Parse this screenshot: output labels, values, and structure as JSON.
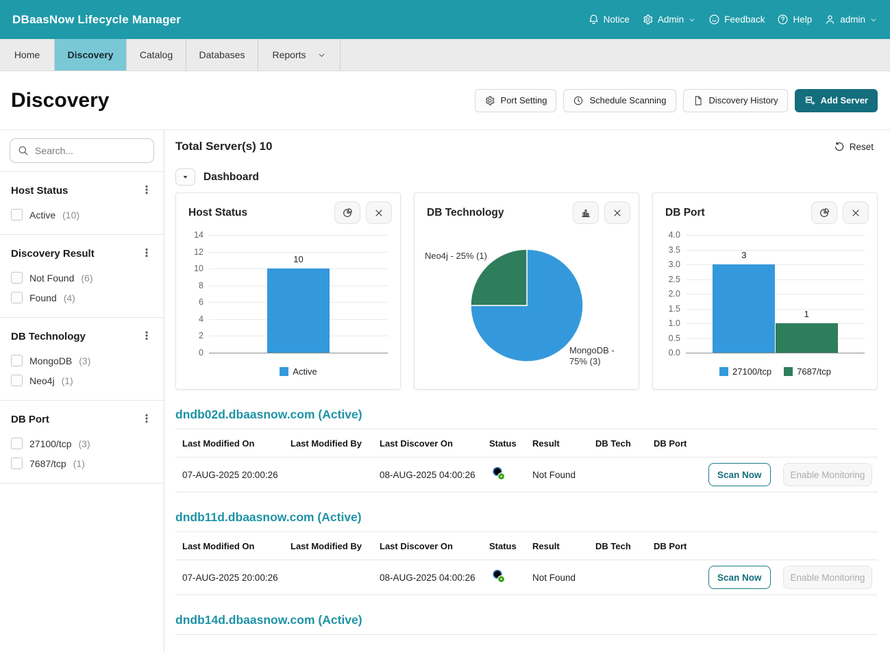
{
  "app": {
    "title": "DBaasNow Lifecycle Manager"
  },
  "top_nav": [
    {
      "id": "notice",
      "label": "Notice",
      "icon": "bell",
      "chevron": false
    },
    {
      "id": "admin-menu",
      "label": "Admin",
      "icon": "gear",
      "chevron": true
    },
    {
      "id": "feedback",
      "label": "Feedback",
      "icon": "smiley",
      "chevron": false
    },
    {
      "id": "help",
      "label": "Help",
      "icon": "help",
      "chevron": false
    },
    {
      "id": "user-menu",
      "label": "admin",
      "icon": "person",
      "chevron": true
    }
  ],
  "tabs": [
    {
      "id": "home",
      "label": "Home",
      "active": false,
      "chevron": false
    },
    {
      "id": "discovery",
      "label": "Discovery",
      "active": true,
      "chevron": false
    },
    {
      "id": "catalog",
      "label": "Catalog",
      "active": false,
      "chevron": false
    },
    {
      "id": "databases",
      "label": "Databases",
      "active": false,
      "chevron": false
    },
    {
      "id": "reports",
      "label": "Reports",
      "active": false,
      "chevron": true
    }
  ],
  "page": {
    "title": "Discovery",
    "actions": [
      {
        "id": "port-setting",
        "label": "Port Setting",
        "icon": "gear",
        "primary": false
      },
      {
        "id": "schedule-scanning",
        "label": "Schedule Scanning",
        "icon": "clock",
        "primary": false
      },
      {
        "id": "discovery-history",
        "label": "Discovery History",
        "icon": "document",
        "primary": false
      },
      {
        "id": "add-server",
        "label": "Add Server",
        "icon": "server-add",
        "primary": true
      }
    ]
  },
  "sidebar": {
    "search_placeholder": "Search...",
    "groups": [
      {
        "title": "Host Status",
        "options": [
          {
            "label": "Active",
            "count": "(10)",
            "checked": false
          }
        ]
      },
      {
        "title": "Discovery Result",
        "options": [
          {
            "label": "Not Found",
            "count": "(6)",
            "checked": false
          },
          {
            "label": "Found",
            "count": "(4)",
            "checked": false
          }
        ]
      },
      {
        "title": "DB Technology",
        "options": [
          {
            "label": "MongoDB",
            "count": "(3)",
            "checked": false
          },
          {
            "label": "Neo4j",
            "count": "(1)",
            "checked": false
          }
        ]
      },
      {
        "title": "DB Port",
        "options": [
          {
            "label": "27100/tcp",
            "count": "(3)",
            "checked": false
          },
          {
            "label": "7687/tcp",
            "count": "(1)",
            "checked": false
          }
        ]
      }
    ]
  },
  "content": {
    "total_label": "Total Server(s) 10",
    "reset_label": "Reset",
    "dashboard_label": "Dashboard"
  },
  "chart_data": [
    {
      "type": "bar",
      "title": "Host Status",
      "categories": [
        "Active"
      ],
      "values": [
        10
      ],
      "data_labels": [
        "10"
      ],
      "bar_colors": [
        "#3499DC"
      ],
      "ylim": [
        0,
        14
      ],
      "ytick_step": 2,
      "ytick_labels": [
        "0",
        "2",
        "4",
        "6",
        "8",
        "10",
        "12",
        "14"
      ],
      "grid": true,
      "legend": [
        {
          "label": "Active",
          "color": "#3499DC"
        }
      ],
      "legend_position": "bottom",
      "card_buttons": [
        "pie",
        "close"
      ]
    },
    {
      "type": "pie",
      "title": "DB Technology",
      "slices": [
        {
          "label": "MongoDB",
          "value": 3,
          "percent": 75,
          "callout": "MongoDB - 75% (3)",
          "color": "#3499DC"
        },
        {
          "label": "Neo4j",
          "value": 1,
          "percent": 25,
          "callout": "Neo4j - 25% (1)",
          "color": "#2E7D5B"
        }
      ],
      "start_angle_deg": 0,
      "card_buttons": [
        "bars",
        "close"
      ]
    },
    {
      "type": "bar",
      "title": "DB Port",
      "categories": [
        "27100/tcp",
        "7687/tcp"
      ],
      "values": [
        3,
        1
      ],
      "data_labels": [
        "3",
        "1"
      ],
      "bar_colors": [
        "#3499DC",
        "#2E7D5B"
      ],
      "ylim": [
        0,
        4
      ],
      "ytick_step": 0.5,
      "ytick_labels": [
        "0.0",
        "0.5",
        "1.0",
        "1.5",
        "2.0",
        "2.5",
        "3.0",
        "3.5",
        "4.0"
      ],
      "grid": true,
      "legend": [
        {
          "label": "27100/tcp",
          "color": "#3499DC"
        },
        {
          "label": "7687/tcp",
          "color": "#2E7D5B"
        }
      ],
      "legend_position": "bottom",
      "card_buttons": [
        "pie",
        "close"
      ]
    }
  ],
  "table": {
    "columns": [
      "Last Modified On",
      "Last Modified By",
      "Last Discover On",
      "Status",
      "Result",
      "DB Tech",
      "DB Port"
    ]
  },
  "servers": [
    {
      "title": "dndb02d.dbaasnow.com (Active)",
      "rows": [
        {
          "last_modified_on": "07-AUG-2025 20:00:26",
          "last_modified_by": "",
          "last_discover_on": "08-AUG-2025 04:00:26",
          "status": "scan-success",
          "result": "Not Found",
          "db_tech": "",
          "db_port": "",
          "scan_label": "Scan Now",
          "monitor_label": "Enable Monitoring",
          "monitor_disabled": true
        }
      ]
    },
    {
      "title": "dndb11d.dbaasnow.com (Active)",
      "rows": [
        {
          "last_modified_on": "07-AUG-2025 20:00:26",
          "last_modified_by": "",
          "last_discover_on": "08-AUG-2025 04:00:26",
          "status": "scan-success",
          "result": "Not Found",
          "db_tech": "",
          "db_port": "",
          "scan_label": "Scan Now",
          "monitor_label": "Enable Monitoring",
          "monitor_disabled": true
        }
      ]
    },
    {
      "title": "dndb14d.dbaasnow.com (Active)",
      "rows": []
    }
  ],
  "colors": {
    "header_teal": "#1F9AA9",
    "active_tab": "#7AC8D6",
    "primary_button": "#156E7D",
    "link_teal": "#1E93A6",
    "bar_blue": "#3499DC",
    "bar_green": "#2E7D5B",
    "status_ok_green": "#36A311"
  }
}
